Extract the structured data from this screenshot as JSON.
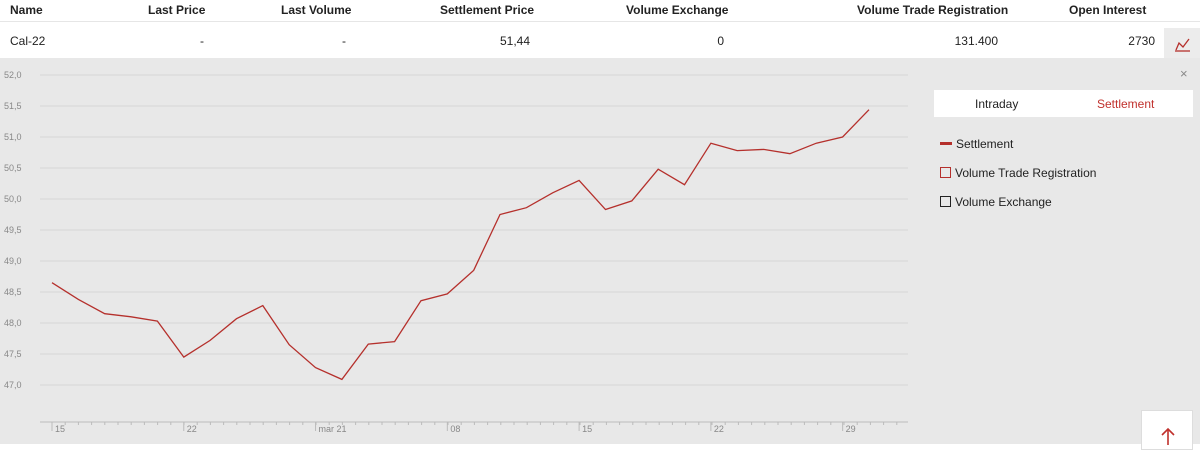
{
  "table": {
    "headers": {
      "name": "Name",
      "last_price": "Last Price",
      "last_volume": "Last Volume",
      "settlement_price": "Settlement Price",
      "volume_exchange": "Volume Exchange",
      "volume_trade_registration": "Volume Trade Registration",
      "open_interest": "Open Interest"
    },
    "row": {
      "name": "Cal-22",
      "last_price": "-",
      "last_volume": "-",
      "settlement_price": "51,44",
      "volume_exchange": "0",
      "volume_trade_registration": "131.400",
      "open_interest": "2730"
    }
  },
  "panel": {
    "close_label": "×",
    "tabs": {
      "intraday": "Intraday",
      "settlement": "Settlement"
    },
    "legend": {
      "settlement": "Settlement",
      "volume_trade_registration": "Volume Trade Registration",
      "volume_exchange": "Volume Exchange"
    }
  },
  "colors": {
    "accent": "#b5302c",
    "panel_bg": "#e8e8e8"
  },
  "chart_data": {
    "type": "line",
    "title": "",
    "xlabel": "",
    "ylabel": "",
    "ylim": [
      46.6,
      52.15
    ],
    "y_ticks": [
      "52,0",
      "51,5",
      "51,0",
      "50,5",
      "50,0",
      "49,5",
      "49,0",
      "48,5",
      "48,0",
      "47,5",
      "47,0"
    ],
    "x_tick_labels": [
      "15",
      "22",
      "mar 21",
      "08",
      "15",
      "22",
      "29"
    ],
    "grid": true,
    "series": [
      {
        "name": "Settlement",
        "values": [
          48.65,
          48.38,
          48.15,
          48.1,
          48.03,
          47.45,
          47.72,
          48.07,
          48.28,
          47.65,
          47.28,
          47.09,
          47.66,
          47.7,
          48.36,
          48.47,
          48.85,
          49.75,
          49.86,
          50.1,
          50.3,
          49.83,
          49.97,
          50.48,
          50.23,
          50.9,
          50.78,
          50.8,
          50.73,
          50.9,
          51.0,
          51.44
        ]
      }
    ]
  }
}
